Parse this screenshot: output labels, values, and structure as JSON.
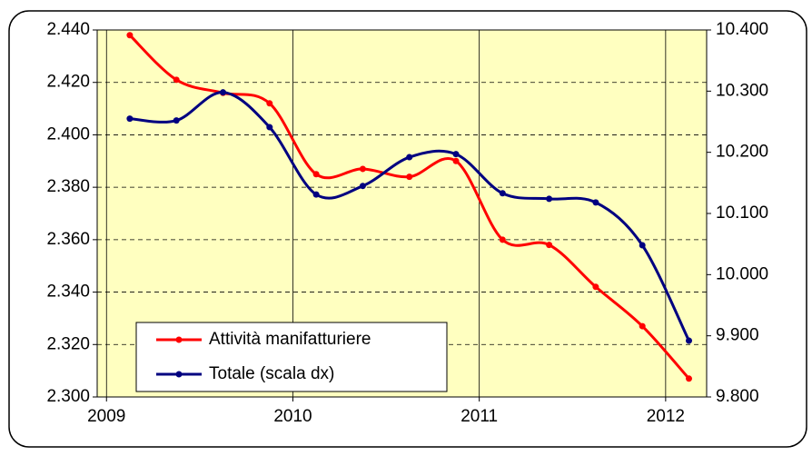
{
  "chart_data": {
    "type": "line",
    "x": [
      2009.125,
      2009.375,
      2009.625,
      2009.875,
      2010.125,
      2010.375,
      2010.625,
      2010.875,
      2011.125,
      2011.375,
      2011.625,
      2011.875,
      2012.125
    ],
    "xlim": [
      2008.95,
      2012.22
    ],
    "xticks": [
      2009,
      2010,
      2011,
      2012
    ],
    "ylim": [
      2300,
      2440
    ],
    "yticks": [
      {
        "value": 2300,
        "label": "2.300"
      },
      {
        "value": 2320,
        "label": "2.320"
      },
      {
        "value": 2340,
        "label": "2.340"
      },
      {
        "value": 2360,
        "label": "2.360"
      },
      {
        "value": 2380,
        "label": "2.380"
      },
      {
        "value": 2400,
        "label": "2.400"
      },
      {
        "value": 2420,
        "label": "2.420"
      },
      {
        "value": 2440,
        "label": "2.440"
      }
    ],
    "y2lim": [
      9800,
      10400
    ],
    "y2ticks": [
      {
        "value": 9800,
        "label": "9.800"
      },
      {
        "value": 9900,
        "label": "9.900"
      },
      {
        "value": 10000,
        "label": "10.000"
      },
      {
        "value": 10100,
        "label": "10.100"
      },
      {
        "value": 10200,
        "label": "10.200"
      },
      {
        "value": 10300,
        "label": "10.300"
      },
      {
        "value": 10400,
        "label": "10.400"
      }
    ],
    "grid": true,
    "legend": "lower left",
    "series": [
      {
        "name": "Attività manifatturiere",
        "color": "#ff0000",
        "values": [
          2438,
          2421,
          2416,
          2412,
          2385,
          2387,
          2384,
          2390,
          2360,
          2358,
          2342,
          2327,
          2307
        ]
      },
      {
        "name": "Totale (scala dx)",
        "color": "#000080",
        "axis": "y2",
        "values": [
          10255,
          10252,
          10298,
          10241,
          10131,
          10145,
          10192,
          10197,
          10133,
          10124,
          10118,
          10048,
          9892
        ]
      }
    ]
  }
}
